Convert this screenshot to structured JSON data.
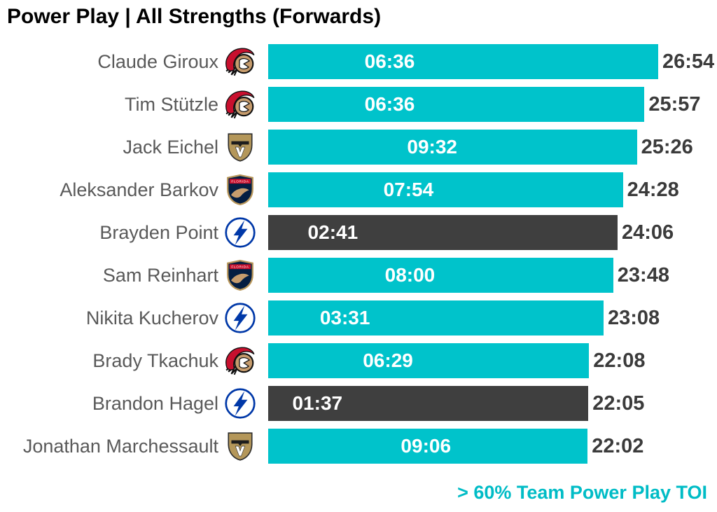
{
  "colors": {
    "bar_highlight": "#00C3CB",
    "bar_muted": "#3F3F3F",
    "inner_label": "#FFFFFF",
    "total_label": "#3B3B3B",
    "player_label": "#595959",
    "legend": "#00BCC6",
    "title": "#000000"
  },
  "chart_data": {
    "type": "bar",
    "orientation": "horizontal",
    "title": "Power Play | All Strengths (Forwards)",
    "legend": "> 60% Team Power Play TOI",
    "legend_position": "bottom-right",
    "axis_max": "26:54",
    "axis_range_seconds": [
      0,
      1614
    ],
    "grid": false,
    "series_description": {
      "bar_length": "All Strengths TOI (label outside bar end)",
      "inner_label": "Power Play TOI (white label positioned at PP-TOI distance along bar)",
      "highlight_rule": "Teal bar = > 60% Team Power Play TOI; dark gray bar = not"
    },
    "rows": [
      {
        "player": "Claude Giroux",
        "team_logo": "ottawa-senators-logo",
        "power_play_toi": "06:36",
        "all_strengths_toi": "26:54",
        "over_60_pct_team_pp_toi": true
      },
      {
        "player": "Tim Stützle",
        "team_logo": "ottawa-senators-logo",
        "power_play_toi": "06:36",
        "all_strengths_toi": "25:57",
        "over_60_pct_team_pp_toi": true
      },
      {
        "player": "Jack Eichel",
        "team_logo": "vegas-golden-knights-logo",
        "power_play_toi": "09:32",
        "all_strengths_toi": "25:26",
        "over_60_pct_team_pp_toi": true
      },
      {
        "player": "Aleksander Barkov",
        "team_logo": "florida-panthers-logo",
        "power_play_toi": "07:54",
        "all_strengths_toi": "24:28",
        "over_60_pct_team_pp_toi": true
      },
      {
        "player": "Brayden Point",
        "team_logo": "tampa-bay-lightning-logo",
        "power_play_toi": "02:41",
        "all_strengths_toi": "24:06",
        "over_60_pct_team_pp_toi": false
      },
      {
        "player": "Sam Reinhart",
        "team_logo": "florida-panthers-logo",
        "power_play_toi": "08:00",
        "all_strengths_toi": "23:48",
        "over_60_pct_team_pp_toi": true
      },
      {
        "player": "Nikita Kucherov",
        "team_logo": "tampa-bay-lightning-logo",
        "power_play_toi": "03:31",
        "all_strengths_toi": "23:08",
        "over_60_pct_team_pp_toi": true
      },
      {
        "player": "Brady Tkachuk",
        "team_logo": "ottawa-senators-logo",
        "power_play_toi": "06:29",
        "all_strengths_toi": "22:08",
        "over_60_pct_team_pp_toi": true
      },
      {
        "player": "Brandon Hagel",
        "team_logo": "tampa-bay-lightning-logo",
        "power_play_toi": "01:37",
        "all_strengths_toi": "22:05",
        "over_60_pct_team_pp_toi": false
      },
      {
        "player": "Jonathan Marchessault",
        "team_logo": "vegas-golden-knights-logo",
        "power_play_toi": "09:06",
        "all_strengths_toi": "22:02",
        "over_60_pct_team_pp_toi": true
      }
    ]
  }
}
